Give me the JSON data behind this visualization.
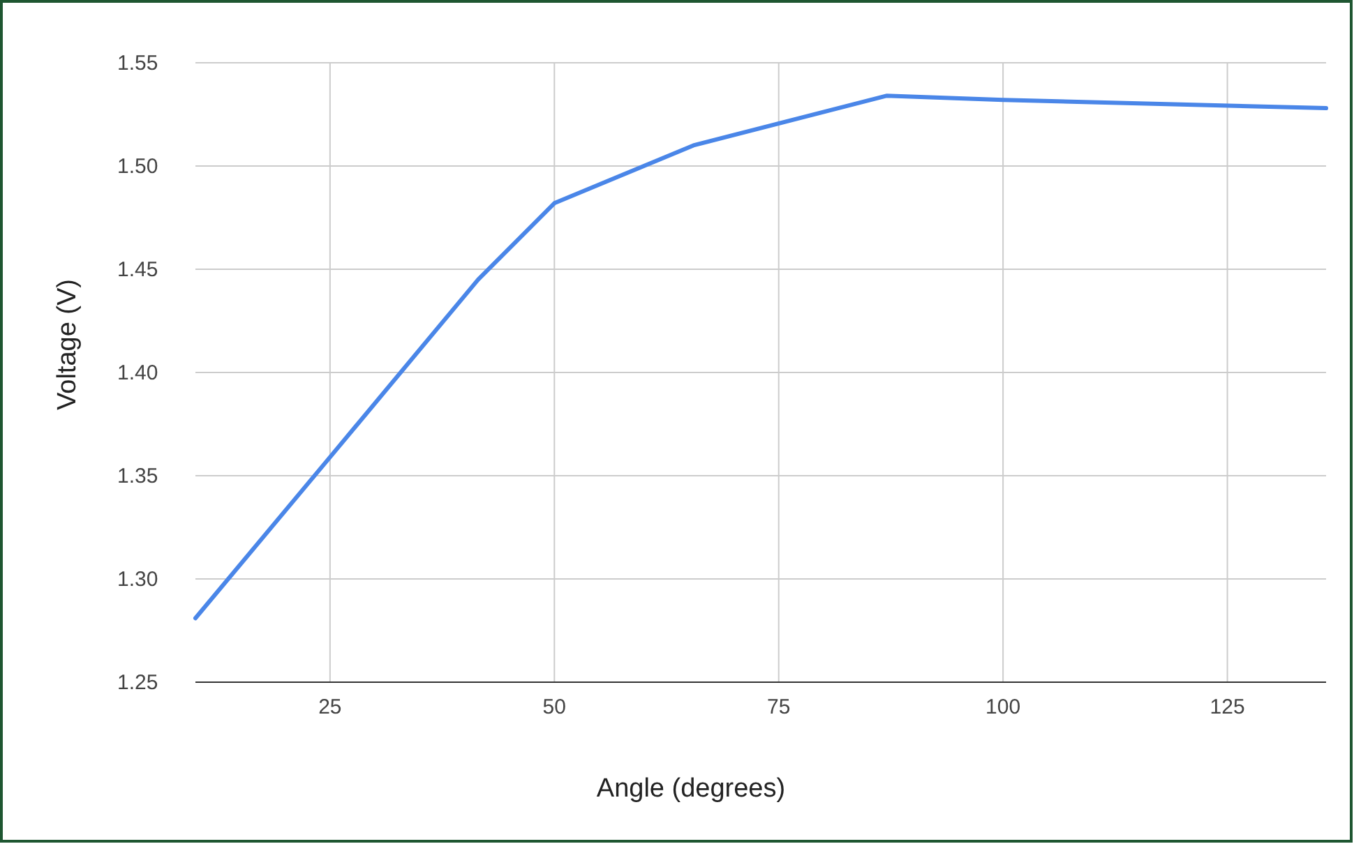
{
  "chart_data": {
    "type": "line",
    "xlabel": "Angle (degrees)",
    "ylabel": "Voltage (V)",
    "x": [
      10,
      25,
      41.5,
      50,
      65.5,
      87,
      100,
      136
    ],
    "series": [
      {
        "color": "#4a86e8",
        "values": [
          1.281,
          1.359,
          1.445,
          1.482,
          1.51,
          1.534,
          1.532,
          1.528
        ]
      }
    ],
    "xlim": [
      10,
      136
    ],
    "xticks": [
      25,
      50,
      75,
      100,
      125
    ],
    "ylim": [
      1.25,
      1.55
    ],
    "yticks": [
      {
        "value": 1.25,
        "label": "1.25"
      },
      {
        "value": 1.3,
        "label": "1.30"
      },
      {
        "value": 1.35,
        "label": "1.35"
      },
      {
        "value": 1.4,
        "label": "1.40"
      },
      {
        "value": 1.45,
        "label": "1.45"
      },
      {
        "value": 1.5,
        "label": "1.50"
      },
      {
        "value": 1.55,
        "label": "1.55"
      }
    ],
    "grid": true,
    "marker": "none",
    "line_style": "solid"
  }
}
